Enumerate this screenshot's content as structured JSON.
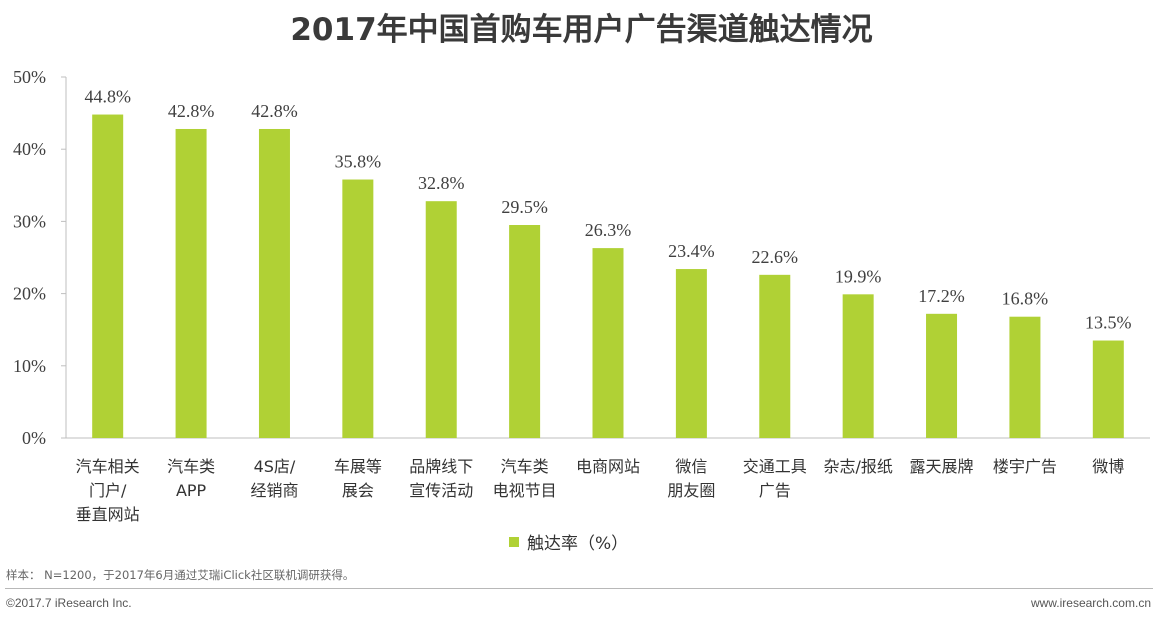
{
  "colors": {
    "bar": "#b0d135",
    "axis": "#bfbfbf",
    "text": "#404040"
  },
  "chart_data": {
    "type": "bar",
    "title": "2017年中国首购车用户广告渠道触达情况",
    "categories": [
      [
        "汽车相关",
        "门户/",
        "垂直网站"
      ],
      [
        "汽车类",
        "APP"
      ],
      [
        "4S店/",
        "经销商"
      ],
      [
        "车展等",
        "展会"
      ],
      [
        "品牌线下",
        "宣传活动"
      ],
      [
        "汽车类",
        "电视节目"
      ],
      [
        "电商网站"
      ],
      [
        "微信",
        "朋友圈"
      ],
      [
        "交通工具",
        "广告"
      ],
      [
        "杂志/报纸"
      ],
      [
        "露天展牌"
      ],
      [
        "楼宇广告"
      ],
      [
        "微博"
      ]
    ],
    "values": [
      44.8,
      42.8,
      42.8,
      35.8,
      32.8,
      29.5,
      26.3,
      23.4,
      22.6,
      19.9,
      17.2,
      16.8,
      13.5
    ],
    "value_labels": [
      "44.8%",
      "42.8%",
      "42.8%",
      "35.8%",
      "32.8%",
      "29.5%",
      "26.3%",
      "23.4%",
      "22.6%",
      "19.9%",
      "17.2%",
      "16.8%",
      "13.5%"
    ],
    "ylim": [
      0,
      50
    ],
    "yticks": [
      0,
      10,
      20,
      30,
      40,
      50
    ],
    "ytick_labels": [
      "0%",
      "10%",
      "20%",
      "30%",
      "40%",
      "50%"
    ],
    "legend": "触达率（%）",
    "legend_position": "bottom"
  },
  "footer": {
    "note": "样本： N=1200，于2017年6月通过艾瑞iClick社区联机调研获得。",
    "copyright": "©2017.7 iResearch Inc.",
    "website": "www.iresearch.com.cn"
  }
}
